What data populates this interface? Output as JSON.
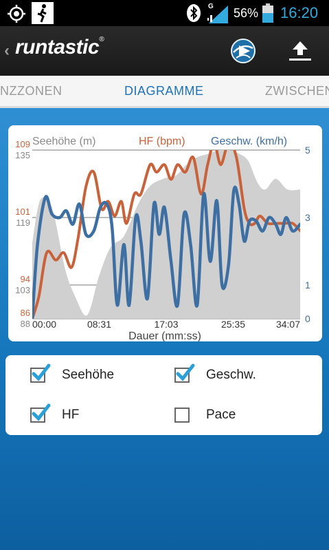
{
  "status_bar": {
    "icons": [
      "gps-icon",
      "runner-icon",
      "bluetooth-icon",
      "signal-icon",
      "battery-icon"
    ],
    "network": "G",
    "battery": "56%",
    "time": "16:20"
  },
  "app_bar": {
    "back_icon": "back-chevron-icon",
    "logo_text": "runtastic",
    "logo_mark": "®",
    "actions": [
      "globe-share-icon",
      "upload-icon"
    ]
  },
  "tabs": [
    {
      "label": "NZZONEN",
      "active": false
    },
    {
      "label": "DIAGRAMME",
      "active": true
    },
    {
      "label": "ZWISCHEN",
      "active": false
    }
  ],
  "chart": {
    "legend": {
      "elevation": "Seehöhe (m)",
      "hr": "HF (bpm)",
      "speed": "Geschw. (km/h)"
    },
    "xlabel": "Dauer (mm:ss)",
    "colors": {
      "elevation": "#d0d0d0",
      "hr": "#c8623a",
      "speed": "#3e6fa3"
    }
  },
  "chart_data": {
    "type": "line",
    "title": "",
    "xlabel": "Dauer (mm:ss)",
    "x_ticks": [
      "00:00",
      "08:31",
      "17:03",
      "25:35",
      "34:07"
    ],
    "xlim_seconds": [
      0,
      2047
    ],
    "axes": {
      "hr": {
        "label": "HF (bpm)",
        "ticks": [
          "86",
          "94",
          "101",
          "109"
        ],
        "ylim": [
          86,
          109
        ]
      },
      "elevation": {
        "label": "Seehöhe (m)",
        "ticks": [
          "88",
          "103",
          "119",
          "135"
        ],
        "ylim": [
          88,
          135
        ]
      },
      "speed": {
        "label": "Geschw. (km/h)",
        "ticks": [
          "0",
          "1",
          "3",
          "5"
        ],
        "ylim": [
          0,
          5
        ]
      }
    },
    "grid": true,
    "series": [
      {
        "name": "Seehöhe (m)",
        "type": "area",
        "x_seconds": [
          0,
          60,
          150,
          250,
          330,
          420,
          511,
          600,
          700,
          810,
          900,
          1000,
          1100,
          1180,
          1260,
          1350,
          1430,
          1510,
          1580,
          1650,
          1720,
          1780,
          1860,
          1950,
          2047
        ],
        "y": [
          109,
          121,
          119,
          102,
          94,
          89,
          100,
          108,
          111,
          120,
          125,
          127,
          128,
          131,
          133,
          134,
          135,
          135,
          134,
          132,
          126,
          124,
          127,
          124,
          124
        ]
      },
      {
        "name": "HF (bpm)",
        "x_seconds": [
          0,
          50,
          110,
          180,
          240,
          300,
          350,
          410,
          470,
          530,
          580,
          630,
          680,
          720,
          780,
          830,
          900,
          950,
          1010,
          1060,
          1110,
          1170,
          1230,
          1290,
          1340,
          1390,
          1440,
          1500,
          1560,
          1620,
          1660,
          1700,
          1740,
          1800,
          1860,
          1930,
          1990,
          2047
        ],
        "y": [
          86,
          89,
          95,
          94,
          95,
          93,
          97,
          104,
          106,
          101,
          102,
          100,
          102,
          99,
          103,
          103,
          107,
          106,
          107,
          105,
          107,
          106,
          108,
          103,
          107,
          110,
          107,
          110,
          108,
          101,
          99,
          99,
          100,
          99,
          99,
          99,
          99,
          98
        ]
      },
      {
        "name": "Geschw. (km/h)",
        "x_seconds": [
          0,
          40,
          100,
          150,
          210,
          260,
          310,
          360,
          410,
          470,
          520,
          570,
          610,
          650,
          700,
          740,
          790,
          830,
          880,
          930,
          970,
          1010,
          1060,
          1110,
          1160,
          1210,
          1260,
          1310,
          1360,
          1410,
          1450,
          1500,
          1540,
          1580,
          1620,
          1660,
          1710,
          1760,
          1810,
          1860,
          1900,
          1940,
          1990,
          2047
        ],
        "y": [
          0,
          2.2,
          3.6,
          3.1,
          3.0,
          3.2,
          2.8,
          3.4,
          2.5,
          2.6,
          3.3,
          3.4,
          2.7,
          0.4,
          2.2,
          0.4,
          3.0,
          2.3,
          0.6,
          3.4,
          2.5,
          3.3,
          1.7,
          0.4,
          3.1,
          2.2,
          0.4,
          3.7,
          1.7,
          3.5,
          1.0,
          1.6,
          3.8,
          3.4,
          2.3,
          2.9,
          2.9,
          2.6,
          3.0,
          2.8,
          2.5,
          3.0,
          2.6,
          2.8
        ]
      }
    ]
  },
  "options": [
    {
      "label": "Seehöhe",
      "checked": true
    },
    {
      "label": "Geschw.",
      "checked": true
    },
    {
      "label": "HF",
      "checked": true
    },
    {
      "label": "Pace",
      "checked": false
    }
  ]
}
